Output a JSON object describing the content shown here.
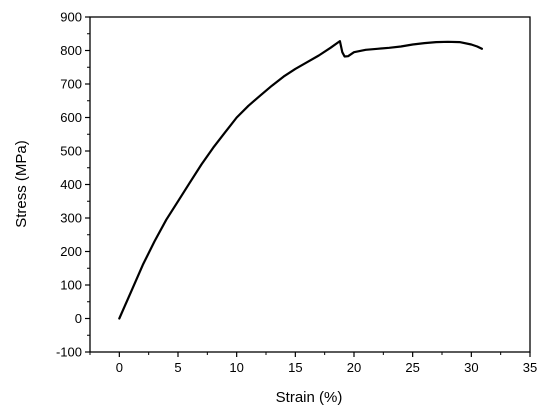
{
  "chart_data": {
    "type": "line",
    "title": "",
    "xlabel": "Strain (%)",
    "ylabel": "Stress (MPa)",
    "xlim": [
      -2.5,
      35
    ],
    "ylim": [
      -100,
      900
    ],
    "xticks": [
      0,
      5,
      10,
      15,
      20,
      25,
      30,
      35
    ],
    "yticks": [
      -100,
      0,
      100,
      200,
      300,
      400,
      500,
      600,
      700,
      800,
      900
    ],
    "grid": false,
    "legend": "none",
    "line_color": "#000000",
    "series": [
      {
        "x": [
          0,
          0.5,
          1,
          2,
          3,
          4,
          5,
          6,
          7,
          8,
          9,
          10,
          11,
          12,
          13,
          14,
          15,
          16,
          17,
          18,
          18.8,
          19.0,
          19.2,
          19.5,
          20,
          21,
          22,
          23,
          24,
          25,
          26,
          27,
          28,
          29,
          30,
          30.5,
          30.9
        ],
        "y": [
          0,
          40,
          80,
          160,
          230,
          295,
          350,
          405,
          460,
          510,
          555,
          600,
          635,
          665,
          695,
          722,
          745,
          765,
          785,
          808,
          828,
          795,
          782,
          783,
          795,
          802,
          805,
          808,
          812,
          818,
          822,
          825,
          826,
          825,
          818,
          812,
          805
        ]
      }
    ]
  }
}
